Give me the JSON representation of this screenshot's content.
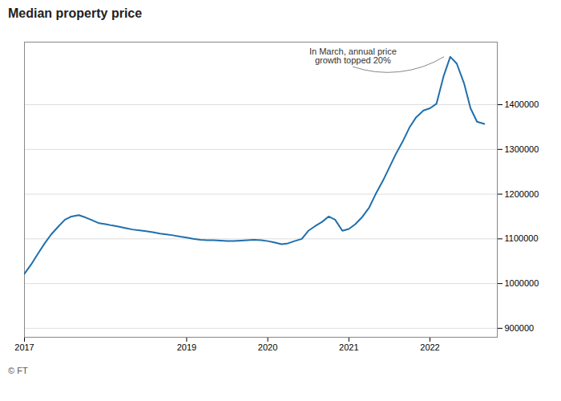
{
  "chart_data": {
    "type": "line",
    "title": "Median property price",
    "caption": "© FT",
    "x": [
      2017.0,
      2017.08,
      2017.17,
      2017.25,
      2017.33,
      2017.42,
      2017.5,
      2017.58,
      2017.67,
      2017.75,
      2017.83,
      2017.92,
      2018.0,
      2018.08,
      2018.17,
      2018.25,
      2018.33,
      2018.42,
      2018.5,
      2018.58,
      2018.67,
      2018.75,
      2018.83,
      2018.92,
      2019.0,
      2019.08,
      2019.17,
      2019.25,
      2019.33,
      2019.42,
      2019.5,
      2019.58,
      2019.67,
      2019.75,
      2019.83,
      2019.92,
      2020.0,
      2020.08,
      2020.17,
      2020.25,
      2020.33,
      2020.42,
      2020.5,
      2020.58,
      2020.67,
      2020.75,
      2020.83,
      2020.92,
      2021.0,
      2021.08,
      2021.17,
      2021.25,
      2021.33,
      2021.42,
      2021.5,
      2021.58,
      2021.67,
      2021.75,
      2021.83,
      2021.92,
      2022.0,
      2022.08,
      2022.17,
      2022.25,
      2022.33,
      2022.42,
      2022.5,
      2022.58,
      2022.67
    ],
    "values": [
      1022000,
      1042000,
      1068000,
      1090000,
      1110000,
      1128000,
      1143000,
      1150000,
      1153000,
      1148000,
      1142000,
      1135000,
      1133000,
      1130000,
      1127000,
      1124000,
      1121000,
      1119000,
      1117000,
      1115000,
      1112000,
      1110000,
      1108000,
      1105000,
      1103000,
      1100000,
      1098000,
      1097000,
      1097000,
      1096000,
      1095000,
      1095000,
      1096000,
      1097000,
      1098000,
      1097000,
      1095000,
      1092000,
      1088000,
      1090000,
      1095000,
      1100000,
      1118000,
      1128000,
      1138000,
      1150000,
      1143000,
      1118000,
      1122000,
      1133000,
      1150000,
      1170000,
      1200000,
      1230000,
      1260000,
      1290000,
      1320000,
      1350000,
      1372000,
      1387000,
      1392000,
      1402000,
      1465000,
      1507000,
      1492000,
      1448000,
      1392000,
      1362000,
      1357000
    ],
    "color": "#1f6fad",
    "xlim": [
      2017.0,
      2022.83
    ],
    "xticks": [
      2017,
      2019,
      2020,
      2021,
      2022
    ],
    "ylim": [
      880000,
      1540000
    ],
    "yticks": [
      900000,
      1000000,
      1100000,
      1200000,
      1300000,
      1400000
    ],
    "grid": true,
    "annotations": [
      {
        "text": "In March, annual price\ngrowth topped 20%",
        "x": 2021.05,
        "y": 1485000,
        "target": [
          2022.17,
          1507000
        ]
      }
    ]
  }
}
